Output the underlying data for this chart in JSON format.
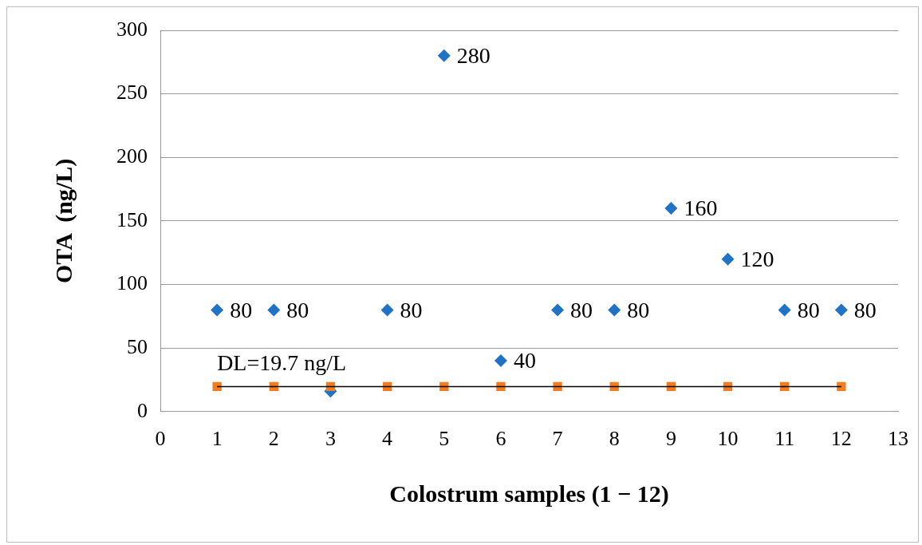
{
  "chart_data": {
    "type": "scatter",
    "xlabel": "Colostrum samples (1 − 12)",
    "ylabel": "OTA  (ng/L)",
    "xlim": [
      0,
      13
    ],
    "xticks": [
      0,
      1,
      2,
      3,
      4,
      5,
      6,
      7,
      8,
      9,
      10,
      11,
      12,
      13
    ],
    "ylim": [
      0,
      300
    ],
    "yticks": [
      0,
      50,
      100,
      150,
      200,
      250,
      300
    ],
    "grid": "y",
    "legend": false,
    "series": [
      {
        "type": "line",
        "color": "#000000",
        "marker": "none",
        "x": [
          1,
          12
        ],
        "values": [
          19.7,
          19.7
        ]
      },
      {
        "type": "scatter",
        "color": "#1f72c4",
        "marker": "diamond",
        "x": [
          1,
          2,
          3,
          4,
          5,
          6,
          7,
          8,
          9,
          10,
          11,
          12
        ],
        "values": [
          80,
          80,
          16,
          80,
          280,
          40,
          80,
          80,
          160,
          120,
          80,
          80
        ],
        "value_labels": [
          "80",
          "80",
          null,
          "80",
          "280",
          "40",
          "80",
          "80",
          "160",
          "120",
          "80",
          "80"
        ]
      },
      {
        "type": "scatter",
        "color": "#f47b20",
        "marker": "square",
        "x": [
          1,
          2,
          3,
          4,
          5,
          6,
          7,
          8,
          9,
          10,
          11,
          12
        ],
        "values": [
          19.7,
          19.7,
          19.7,
          19.7,
          19.7,
          19.7,
          19.7,
          19.7,
          19.7,
          19.7,
          19.7,
          19.7
        ]
      }
    ],
    "annotations": [
      {
        "text": "DL=19.7 ng/L",
        "x": 1,
        "y": 19.7
      }
    ]
  }
}
